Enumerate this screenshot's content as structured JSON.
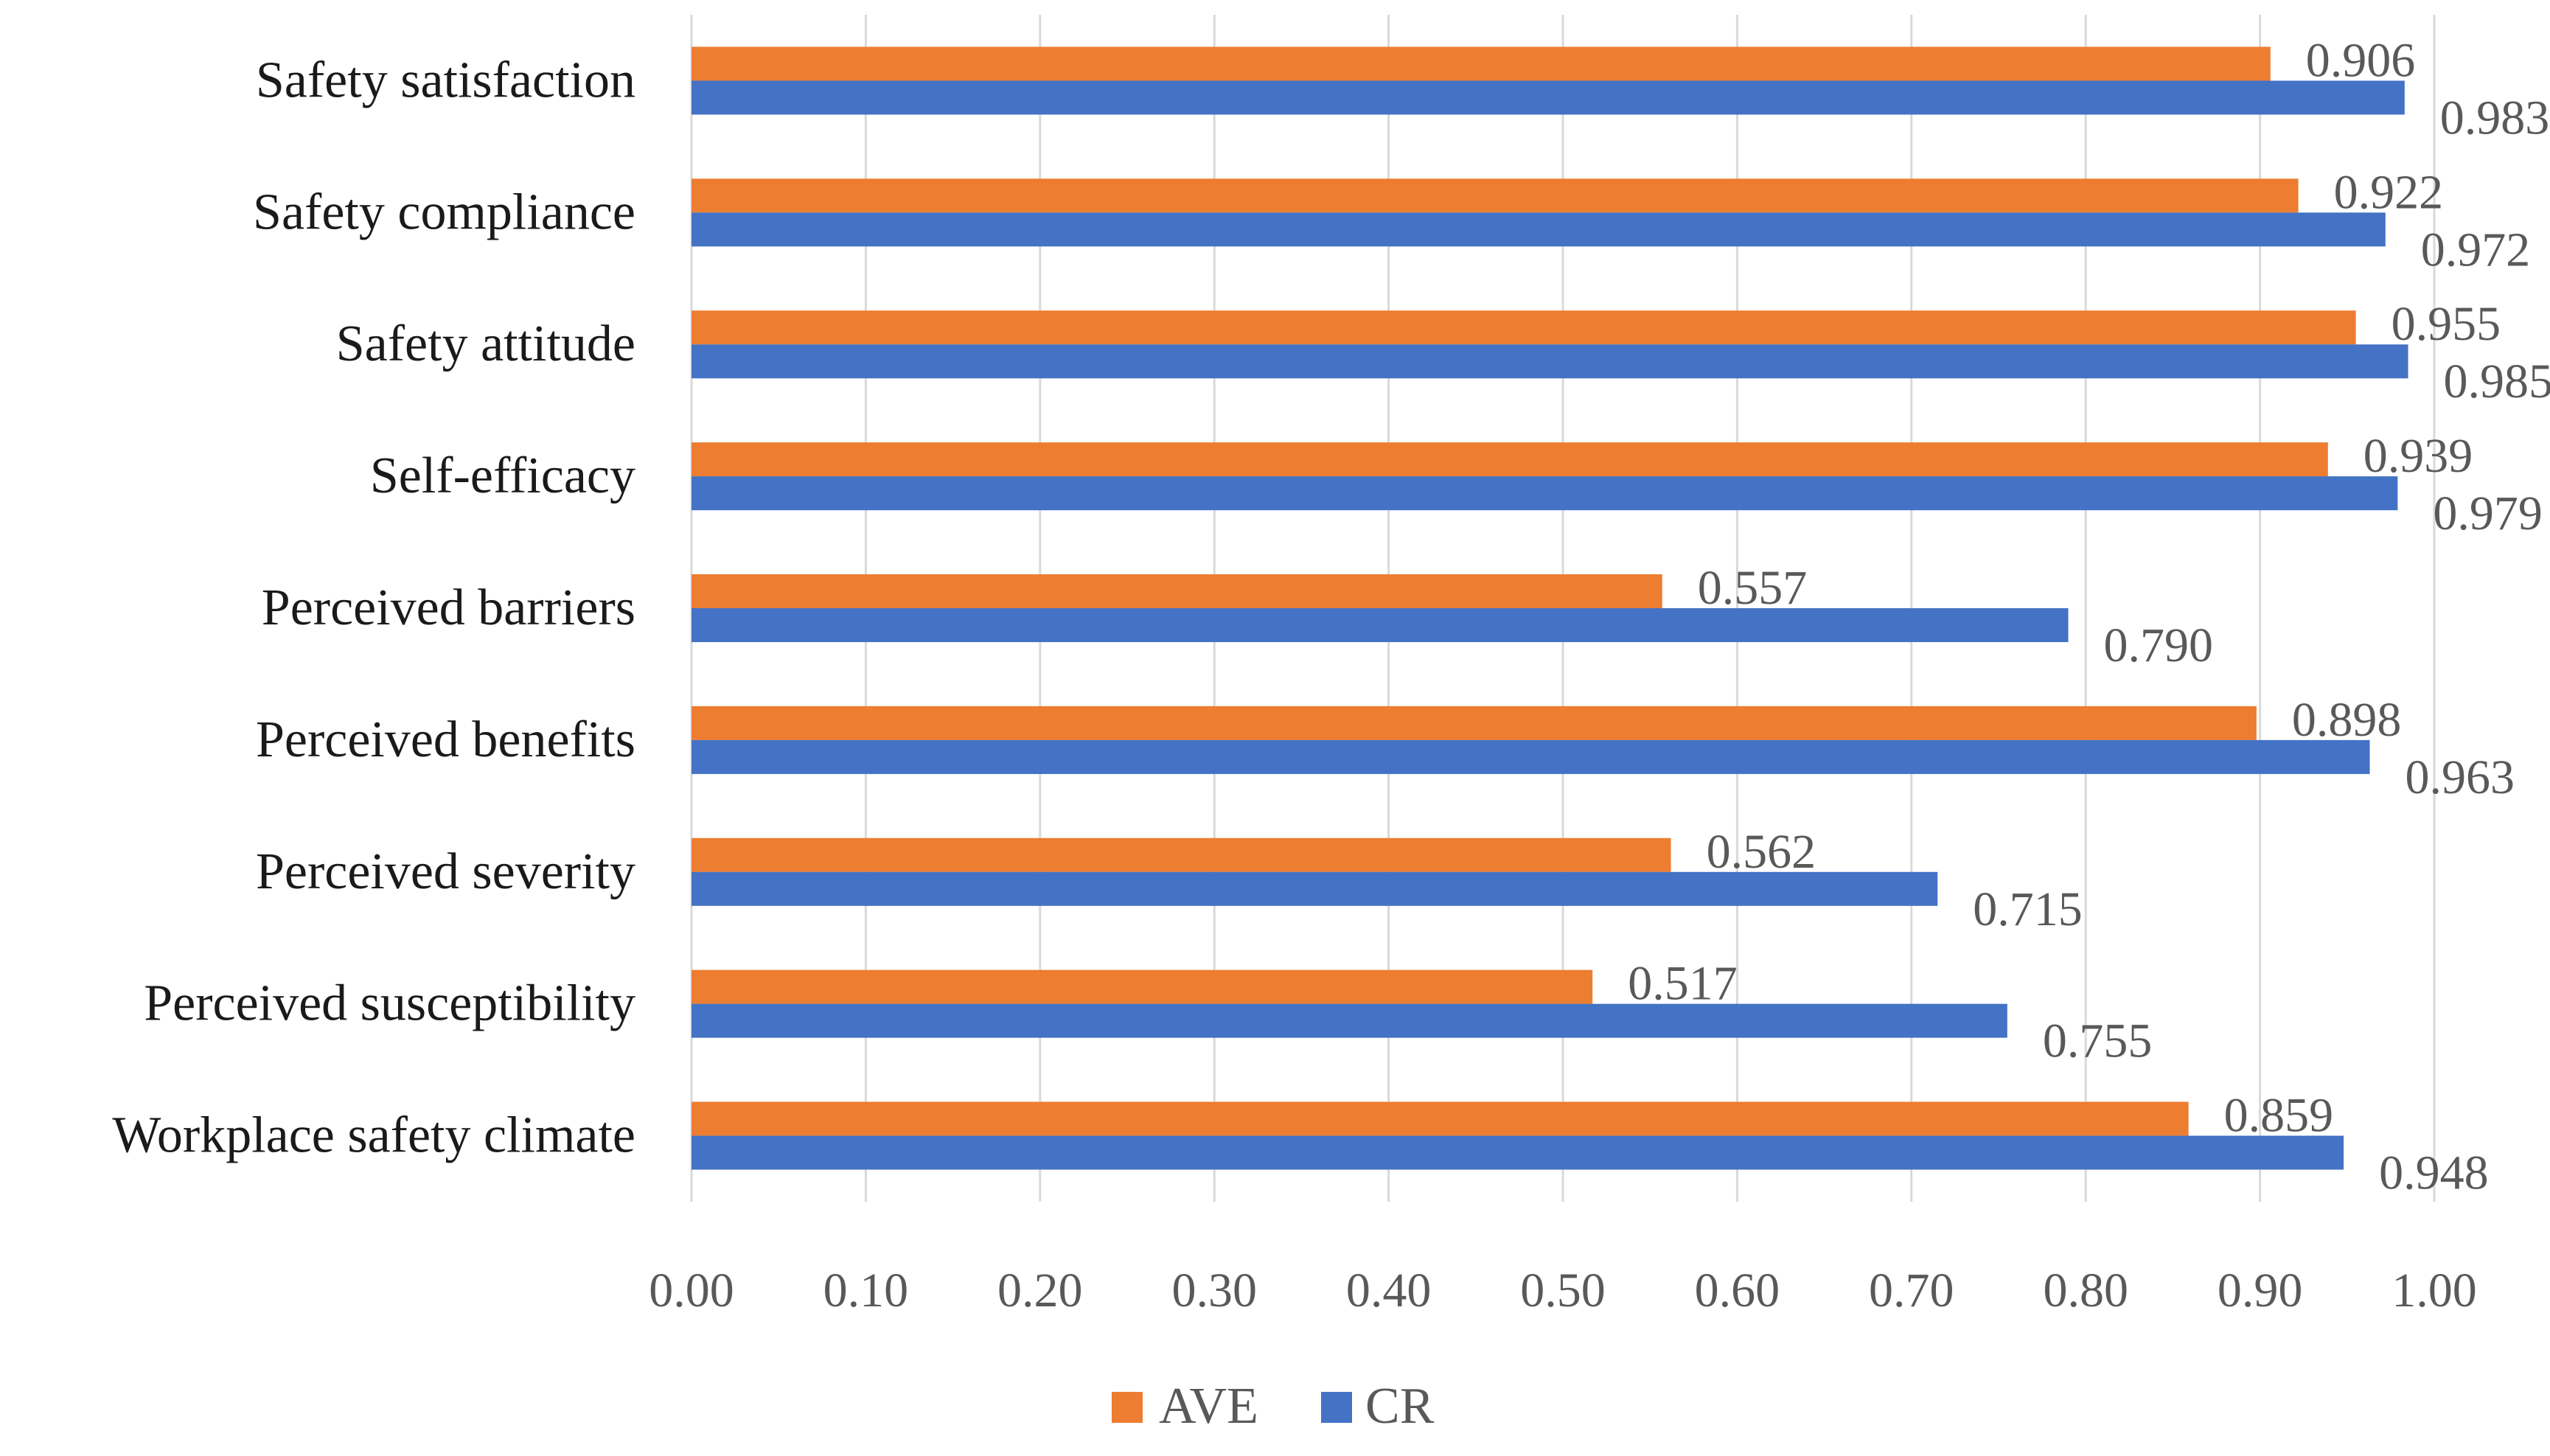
{
  "chart_data": {
    "type": "bar",
    "orientation": "horizontal",
    "title": "",
    "xlabel": "",
    "ylabel": "",
    "categories": [
      "Safety satisfaction",
      "Safety compliance",
      "Safety attitude",
      "Self-efficacy",
      "Perceived barriers",
      "Perceived benefits",
      "Perceived severity",
      "Perceived susceptibility",
      "Workplace safety climate"
    ],
    "series": [
      {
        "name": "AVE",
        "color": "#ED7D31",
        "values": [
          0.906,
          0.922,
          0.955,
          0.939,
          0.557,
          0.898,
          0.562,
          0.517,
          0.859
        ],
        "labels": [
          "0.906",
          "0.922",
          "0.955",
          "0.939",
          "0.557",
          "0.898",
          "0.562",
          "0.517",
          "0.859"
        ]
      },
      {
        "name": "CR",
        "color": "#4472C4",
        "values": [
          0.983,
          0.972,
          0.985,
          0.979,
          0.79,
          0.963,
          0.715,
          0.755,
          0.948
        ],
        "labels": [
          "0.983",
          "0.972",
          "0.985",
          "0.979",
          "0.790",
          "0.963",
          "0.715",
          "0.755",
          "0.948"
        ]
      }
    ],
    "xlim": [
      0,
      1
    ],
    "ticks": [
      "0.00",
      "0.10",
      "0.20",
      "0.30",
      "0.40",
      "0.50",
      "0.60",
      "0.70",
      "0.80",
      "0.90",
      "1.00"
    ],
    "grid": true,
    "legend": {
      "position": "bottom",
      "entries": [
        "AVE",
        "CR"
      ]
    }
  }
}
